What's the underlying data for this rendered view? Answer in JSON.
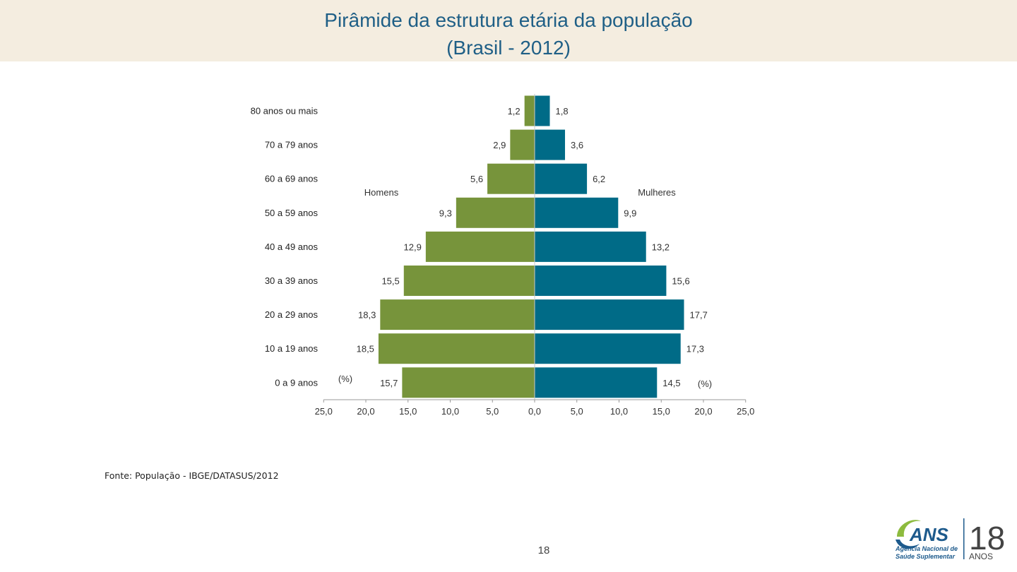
{
  "slide": {
    "title_line1": "Pirâmide da estrutura etária da população",
    "title_line2": "(Brasil - 2012)",
    "source": "Fonte: População - IBGE/DATASUS/2012",
    "page_number": "18"
  },
  "logo": {
    "brand": "ANS",
    "subtitle_line1": "Agência Nacional de",
    "subtitle_line2": "Saúde Suplementar",
    "years_number": "18",
    "years_label": "ANOS"
  },
  "colors": {
    "title": "#1f5f86",
    "title_band": "#f4ede0",
    "men": "#77943b",
    "women": "#006b87",
    "logo_green": "#8dbb3e",
    "logo_blue": "#1d5a8c"
  },
  "chart_data": {
    "type": "bar",
    "orientation": "horizontal",
    "title": "Pirâmide da estrutura etária da população (Brasil - 2012)",
    "categories": [
      "80 anos ou mais",
      "70 a 79 anos",
      "60 a 69 anos",
      "50 a 59 anos",
      "40 a 49 anos",
      "30 a 39 anos",
      "20 a 29 anos",
      "10 a 19 anos",
      "0 a 9 anos"
    ],
    "series": [
      {
        "name": "Homens",
        "side": "left",
        "values": [
          1.2,
          2.9,
          5.6,
          9.3,
          12.9,
          15.5,
          18.3,
          18.5,
          15.7
        ],
        "labels": [
          "1,2",
          "2,9",
          "5,6",
          "9,3",
          "12,9",
          "15,5",
          "18,3",
          "18,5",
          "15,7"
        ]
      },
      {
        "name": "Mulheres",
        "side": "right",
        "values": [
          1.8,
          3.6,
          6.2,
          9.9,
          13.2,
          15.6,
          17.7,
          17.3,
          14.5
        ],
        "labels": [
          "1,8",
          "3,6",
          "6,2",
          "9,9",
          "13,2",
          "15,6",
          "17,7",
          "17,3",
          "14,5"
        ]
      }
    ],
    "xlim": [
      -25,
      25
    ],
    "xticks": [
      -25,
      -20,
      -15,
      -10,
      -5,
      0,
      5,
      10,
      15,
      20,
      25
    ],
    "xtick_labels": [
      "25,0",
      "20,0",
      "15,0",
      "10,0",
      "5,0",
      "0,0",
      "5,0",
      "10,0",
      "15,0",
      "20,0",
      "25,0"
    ],
    "unit_label_left": "(%)",
    "unit_label_right": "(%)",
    "grid": false,
    "legend": "inline labels"
  }
}
